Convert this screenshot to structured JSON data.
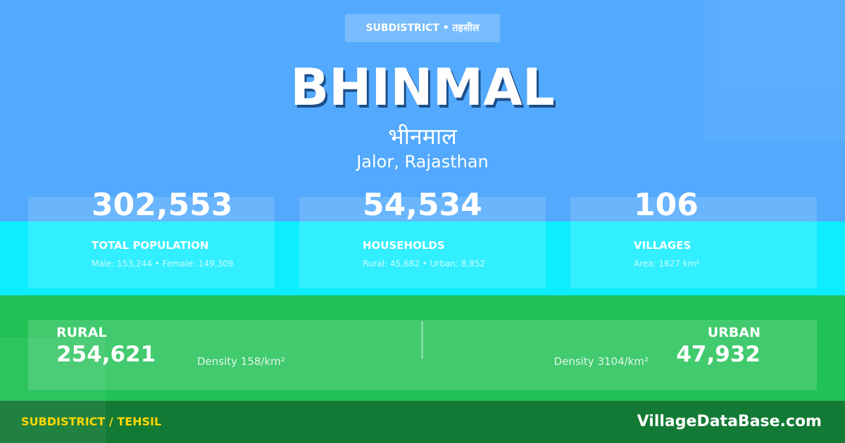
{
  "badge": "SUBDISTRICT • तहसील",
  "title": "BHINMAL",
  "title_hindi": "भीनमाल",
  "location": "Jalor, Rajasthan",
  "stats": [
    {
      "value": "302,553",
      "label": "TOTAL POPULATION",
      "detail": "Male: 153,244 • Female: 149,309"
    },
    {
      "value": "54,534",
      "label": "HOUSEHOLDS",
      "detail": "Rural: 45,682 • Urban: 8,852"
    },
    {
      "value": "106",
      "label": "VILLAGES",
      "detail": "Area: 1627 km²"
    }
  ],
  "rural": {
    "label": "RURAL",
    "value": "254,621",
    "density": "Density 158/km²"
  },
  "urban": {
    "label": "URBAN",
    "value": "47,932",
    "density": "Density 3104/km²"
  },
  "footer": {
    "category": "SUBDISTRICT / TEHSIL",
    "site": "VillageDataBase.com"
  }
}
